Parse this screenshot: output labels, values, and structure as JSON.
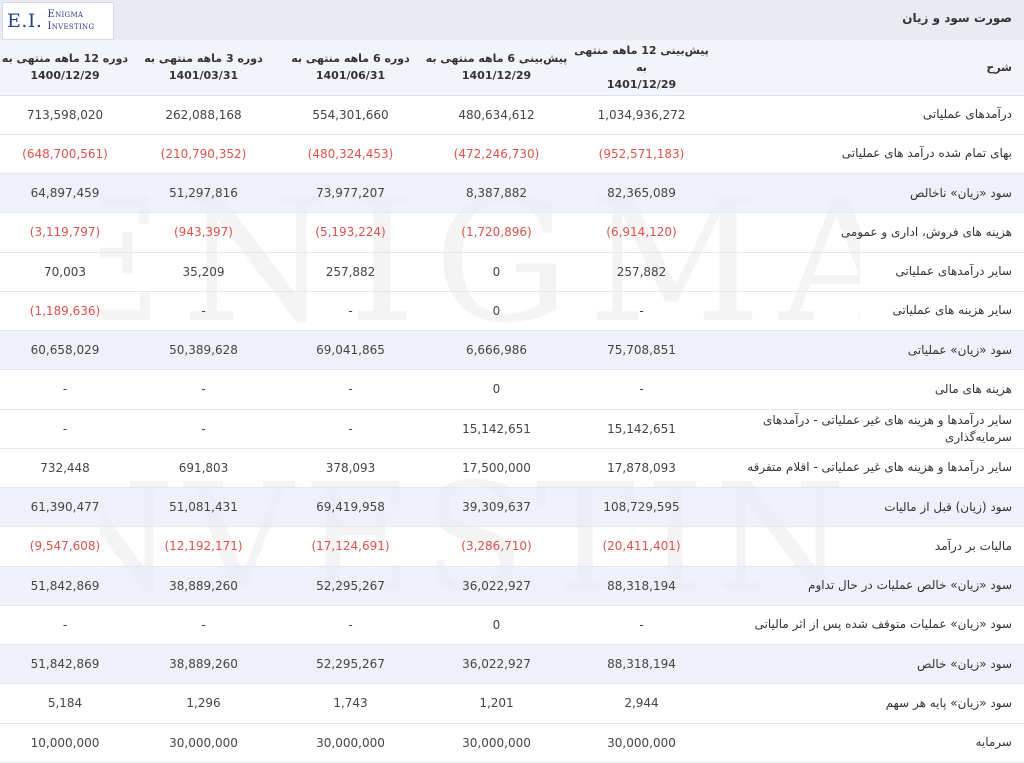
{
  "header": {
    "title": "صورت سود و زیان",
    "logo": {
      "initials": "E.I.",
      "line1": "Enigma",
      "line2": "Investing"
    },
    "watermark": {
      "line1": "ENIGMA",
      "line2": "INVESTING"
    }
  },
  "table": {
    "desc_header": "شرح",
    "columns": [
      {
        "period": "پیش‌بینی 12 ماهه منتهی به",
        "date": "1401/12/29"
      },
      {
        "period": "پیش‌بینی 6 ماهه منتهی به",
        "date": "1401/12/29"
      },
      {
        "period": "دوره 6 ماهه منتهی به",
        "date": "1401/06/31"
      },
      {
        "period": "دوره 3 ماهه منتهی به",
        "date": "1401/03/31"
      },
      {
        "period": "دوره 12 ماهه منتهی به",
        "date": "1400/12/29"
      }
    ],
    "rows": [
      {
        "label": "درآمدهای عملیاتی",
        "values": [
          "1,034,936,272",
          "480,634,612",
          "554,301,660",
          "262,088,168",
          "713,598,020"
        ]
      },
      {
        "label": "بهای تمام شده درآمد های عملیاتی",
        "values": [
          "(952,571,183)",
          "(472,246,730)",
          "(480,324,453)",
          "(210,790,352)",
          "(648,700,561)"
        ]
      },
      {
        "label": "سود «زیان» ناخالص",
        "values": [
          "82,365,089",
          "8,387,882",
          "73,977,207",
          "51,297,816",
          "64,897,459"
        ]
      },
      {
        "label": "هزینه های فروش، اداری و عمومی",
        "values": [
          "(6,914,120)",
          "(1,720,896)",
          "(5,193,224)",
          "(943,397)",
          "(3,119,797)"
        ]
      },
      {
        "label": "سایر درآمدهای عملیاتی",
        "values": [
          "257,882",
          "0",
          "257,882",
          "35,209",
          "70,003"
        ]
      },
      {
        "label": "سایر هزینه های عملیاتی",
        "values": [
          "-",
          "0",
          "-",
          "-",
          "(1,189,636)"
        ]
      },
      {
        "label": "سود «زیان» عملیاتی",
        "values": [
          "75,708,851",
          "6,666,986",
          "69,041,865",
          "50,389,628",
          "60,658,029"
        ]
      },
      {
        "label": "هزینه های مالی",
        "values": [
          "-",
          "0",
          "-",
          "-",
          "-"
        ]
      },
      {
        "label": "سایر درآمدها و هزینه های غیر عملیاتی - درآمدهای سرمایه‌گذاری",
        "values": [
          "15,142,651",
          "15,142,651",
          "-",
          "-",
          "-"
        ]
      },
      {
        "label": "سایر درآمدها و هزینه های غیر عملیاتی - اقلام متفرقه",
        "values": [
          "17,878,093",
          "17,500,000",
          "378,093",
          "691,803",
          "732,448"
        ]
      },
      {
        "label": "سود (زیان) قبل از مالیات",
        "values": [
          "108,729,595",
          "39,309,637",
          "69,419,958",
          "51,081,431",
          "61,390,477"
        ]
      },
      {
        "label": "مالیات بر درآمد",
        "values": [
          "(20,411,401)",
          "(3,286,710)",
          "(17,124,691)",
          "(12,192,171)",
          "(9,547,608)"
        ]
      },
      {
        "label": "سود «زیان» خالص عملیات در حال تداوم",
        "values": [
          "88,318,194",
          "36,022,927",
          "52,295,267",
          "38,889,260",
          "51,842,869"
        ]
      },
      {
        "label": "سود «زیان» عملیات متوقف شده پس از اثر مالیاتی",
        "values": [
          "-",
          "0",
          "-",
          "-",
          "-"
        ]
      },
      {
        "label": "سود «زیان» خالص",
        "values": [
          "88,318,194",
          "36,022,927",
          "52,295,267",
          "38,889,260",
          "51,842,869"
        ]
      },
      {
        "label": "سود «زیان» پایه هر سهم",
        "values": [
          "2,944",
          "1,201",
          "1,743",
          "1,296",
          "5,184"
        ]
      },
      {
        "label": "سرمایه",
        "values": [
          "30,000,000",
          "30,000,000",
          "30,000,000",
          "30,000,000",
          "10,000,000"
        ]
      }
    ],
    "highlight_rows": [
      2,
      6,
      10,
      12,
      14
    ],
    "colors": {
      "negative": "#e0524a",
      "highlight": "#e8ecf6",
      "header_bg": "#e8ebf2",
      "logo": "#25408f"
    }
  }
}
